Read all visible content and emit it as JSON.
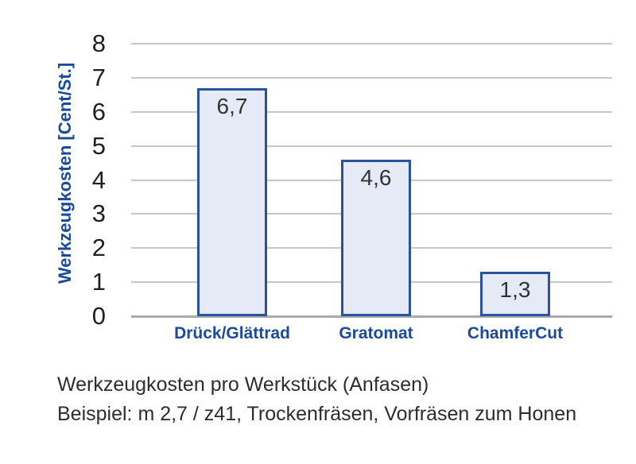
{
  "chart_data": {
    "type": "bar",
    "categories": [
      "Drück/Glättrad",
      "Gratomat",
      "ChamferCut"
    ],
    "values": [
      6.7,
      4.6,
      1.3
    ],
    "value_labels": [
      "6,7",
      "4,6",
      "1,3"
    ],
    "title": "",
    "xlabel": "",
    "ylabel": "Werkzeugkosten [Cent/St.]",
    "ylim": [
      0,
      8
    ],
    "yticks": [
      0,
      1,
      2,
      3,
      4,
      5,
      6,
      7,
      8
    ],
    "grid": true,
    "legend": false,
    "colors": {
      "bar_fill": "#e6eaf6",
      "bar_border": "#2b529e",
      "accent_blue": "#1b4a9b",
      "gridline": "#c7c7c7",
      "tick_text": "#1f1f1f",
      "caption_text": "#2d2d2d"
    }
  },
  "captions": {
    "line1": "Werkzeugkosten pro Werkstück (Anfasen)",
    "line2": "Beispiel: m 2,7 / z41, Trockenfräsen, Vorfräsen zum Honen"
  }
}
